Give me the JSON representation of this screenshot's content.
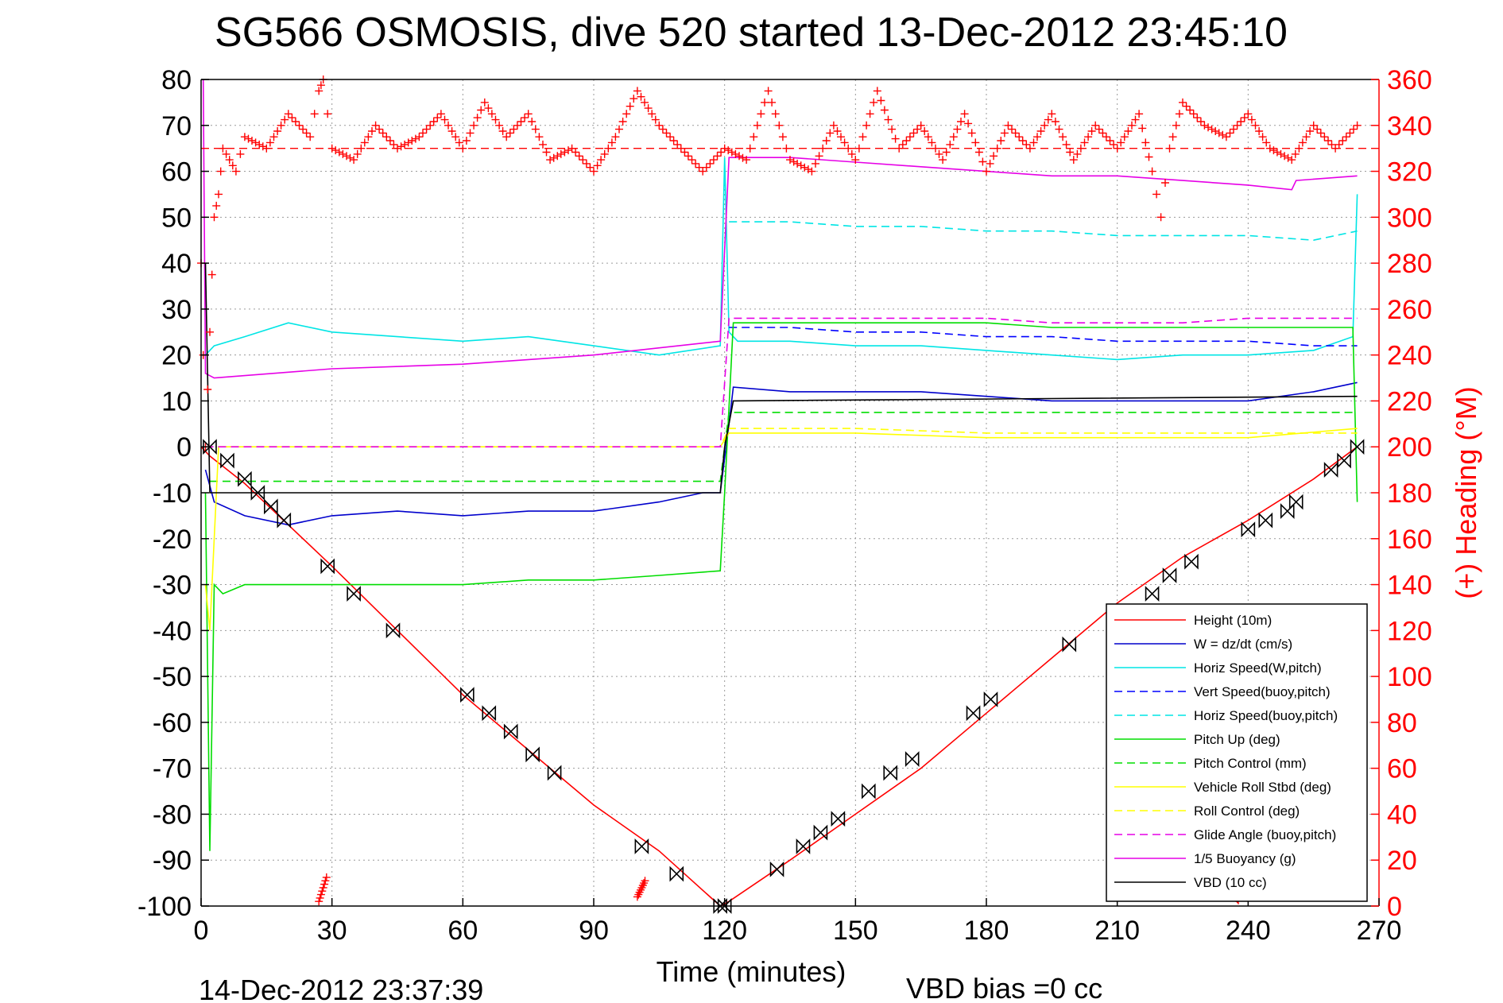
{
  "chart_data": {
    "type": "line",
    "title": "SG566 OSMOSIS, dive 520 started 13-Dec-2012 23:45:10",
    "xlabel": "Time (minutes)",
    "ylabel_right": "(+) Heading (°M)",
    "xlim": [
      0,
      270
    ],
    "ylim_left": [
      -100,
      80
    ],
    "ylim_right": [
      0,
      360
    ],
    "x_ticks": [
      0,
      30,
      60,
      90,
      120,
      150,
      180,
      210,
      240,
      270
    ],
    "y_left_ticks": [
      80,
      70,
      60,
      50,
      40,
      30,
      20,
      10,
      0,
      -10,
      -20,
      -30,
      -40,
      -50,
      -60,
      -70,
      -80,
      -90,
      -100
    ],
    "y_right_ticks": [
      360,
      340,
      320,
      300,
      280,
      260,
      240,
      220,
      200,
      180,
      160,
      140,
      120,
      100,
      80,
      60,
      40,
      20,
      0
    ],
    "grid": true,
    "legend_position": "bottom-right",
    "footer_left": "14-Dec-2012 23:37:39",
    "footer_right": "VBD bias =0 cc",
    "colors": {
      "red": "#ff0000",
      "blue": "#0000cc",
      "cyan": "#00e5e5",
      "green": "#00dd00",
      "yellow": "#ffff00",
      "magenta": "#e600e6",
      "black": "#000000"
    },
    "series": [
      {
        "name": "Height (10m)",
        "color": "#ff0000",
        "style": "solid",
        "axis": "left",
        "x": [
          0,
          2,
          10,
          20,
          30,
          45,
          60,
          75,
          90,
          105,
          119,
          121,
          135,
          150,
          165,
          180,
          195,
          210,
          225,
          240,
          255,
          265
        ],
        "y": [
          0,
          -2,
          -8,
          -17,
          -26,
          -40,
          -54,
          -66,
          -78,
          -88,
          -100,
          -99,
          -90,
          -80,
          -70,
          -58,
          -46,
          -34,
          -24,
          -16,
          -7,
          0
        ]
      },
      {
        "name": "W = dz/dt (cm/s)",
        "color": "#0000cc",
        "style": "solid",
        "axis": "left",
        "x": [
          1,
          3,
          10,
          20,
          30,
          45,
          60,
          75,
          90,
          105,
          115,
          119,
          121,
          122,
          135,
          150,
          165,
          180,
          195,
          210,
          225,
          240,
          255,
          265
        ],
        "y": [
          -5,
          -12,
          -15,
          -17,
          -15,
          -14,
          -15,
          -14,
          -14,
          -12,
          -10,
          -10,
          5,
          13,
          12,
          12,
          12,
          11,
          10,
          10,
          10,
          10,
          12,
          14
        ]
      },
      {
        "name": "Horiz Speed(W,pitch)",
        "color": "#00e5e5",
        "style": "solid",
        "axis": "left",
        "x": [
          1,
          3,
          10,
          20,
          30,
          45,
          60,
          75,
          90,
          105,
          119,
          120,
          121,
          123,
          135,
          150,
          165,
          180,
          195,
          210,
          225,
          240,
          255,
          264,
          265
        ],
        "y": [
          20,
          22,
          24,
          27,
          25,
          24,
          23,
          24,
          22,
          20,
          22,
          63,
          25,
          23,
          23,
          22,
          22,
          21,
          20,
          19,
          20,
          20,
          21,
          24,
          55
        ]
      },
      {
        "name": "Vert Speed(buoy,pitch)",
        "color": "#0000ff",
        "style": "dashed",
        "axis": "left",
        "x": [
          121,
          135,
          150,
          165,
          180,
          195,
          210,
          225,
          240,
          255,
          265
        ],
        "y": [
          26,
          26,
          25,
          25,
          24,
          24,
          23,
          23,
          23,
          22,
          22
        ]
      },
      {
        "name": "Horiz Speed(buoy,pitch)",
        "color": "#00e5e5",
        "style": "dashed",
        "axis": "left",
        "x": [
          121,
          135,
          150,
          165,
          180,
          195,
          210,
          225,
          240,
          255,
          265
        ],
        "y": [
          49,
          49,
          48,
          48,
          47,
          47,
          46,
          46,
          46,
          45,
          47
        ]
      },
      {
        "name": "Pitch Up (deg)",
        "color": "#00dd00",
        "style": "solid",
        "axis": "left",
        "x": [
          1,
          2,
          3,
          5,
          10,
          20,
          30,
          45,
          60,
          75,
          90,
          105,
          119,
          120,
          122,
          135,
          150,
          165,
          180,
          195,
          210,
          225,
          240,
          255,
          264,
          265
        ],
        "y": [
          -10,
          -88,
          -30,
          -32,
          -30,
          -30,
          -30,
          -30,
          -30,
          -29,
          -29,
          -28,
          -27,
          -10,
          27,
          27,
          27,
          27,
          27,
          26,
          26,
          26,
          26,
          26,
          26,
          -12
        ]
      },
      {
        "name": "Pitch Control (mm)",
        "color": "#00dd00",
        "style": "dashed",
        "axis": "left",
        "x": [
          2,
          119,
          121,
          265
        ],
        "y": [
          -7.5,
          -7.5,
          7.5,
          7.5
        ]
      },
      {
        "name": "Vehicle Roll Stbd (deg)",
        "color": "#ffff00",
        "style": "solid",
        "axis": "left",
        "x": [
          1,
          2,
          4,
          6,
          10,
          30,
          60,
          90,
          119,
          121,
          150,
          180,
          210,
          240,
          265
        ],
        "y": [
          -30,
          -40,
          0,
          0,
          0,
          0,
          0,
          0,
          0,
          3,
          3,
          2,
          2,
          2,
          4
        ]
      },
      {
        "name": "Roll Control (deg)",
        "color": "#ffff00",
        "style": "dashed",
        "axis": "left",
        "x": [
          1,
          5,
          10,
          30,
          60,
          90,
          119,
          121,
          150,
          180,
          210,
          240,
          265
        ],
        "y": [
          0,
          0,
          0,
          0,
          0,
          0,
          0,
          4,
          4,
          3,
          3,
          3,
          3
        ]
      },
      {
        "name": "Glide Angle (buoy,pitch)",
        "color": "#e600e6",
        "style": "dashed",
        "axis": "left",
        "x": [
          1,
          119,
          121,
          135,
          150,
          165,
          180,
          195,
          210,
          225,
          240,
          255,
          265
        ],
        "y": [
          0,
          0,
          28,
          28,
          28,
          28,
          28,
          27,
          27,
          27,
          28,
          28,
          28
        ]
      },
      {
        "name": "1/5 Buoyancy (g)",
        "color": "#e600e6",
        "style": "solid",
        "axis": "left",
        "x": [
          0.5,
          1,
          3,
          30,
          60,
          90,
          119,
          121,
          135,
          150,
          165,
          180,
          195,
          210,
          225,
          240,
          250,
          251,
          265
        ],
        "y": [
          80,
          16,
          15,
          17,
          18,
          20,
          23,
          63,
          63,
          62,
          61,
          60,
          59,
          59,
          58,
          57,
          56,
          58,
          59
        ]
      },
      {
        "name": "VBD (10 cc)",
        "color": "#000000",
        "style": "solid",
        "axis": "left",
        "x": [
          1,
          2,
          119,
          120,
          122,
          265
        ],
        "y": [
          40,
          -10,
          -10,
          0,
          10,
          11
        ]
      }
    ],
    "heading": {
      "axis": "right",
      "color": "#ff0000",
      "marker": "+",
      "reference": 330,
      "x": [
        0,
        1,
        2,
        3,
        4,
        5,
        8,
        10,
        15,
        20,
        25,
        27,
        28,
        30,
        35,
        40,
        45,
        50,
        55,
        60,
        65,
        70,
        75,
        80,
        85,
        90,
        95,
        100,
        105,
        110,
        115,
        120,
        125,
        130,
        135,
        140,
        145,
        150,
        155,
        160,
        165,
        170,
        175,
        180,
        185,
        190,
        195,
        200,
        205,
        210,
        215,
        218,
        220,
        222,
        225,
        230,
        235,
        240,
        245,
        250,
        255,
        260,
        265
      ],
      "y": [
        280,
        200,
        250,
        300,
        310,
        330,
        320,
        335,
        330,
        345,
        335,
        355,
        360,
        330,
        325,
        340,
        330,
        335,
        345,
        330,
        350,
        335,
        345,
        325,
        330,
        320,
        335,
        355,
        340,
        330,
        320,
        330,
        325,
        355,
        325,
        320,
        340,
        325,
        355,
        330,
        340,
        325,
        345,
        320,
        340,
        330,
        345,
        325,
        340,
        330,
        345,
        320,
        300,
        330,
        350,
        340,
        335,
        345,
        330,
        325,
        340,
        330,
        340
      ]
    },
    "heading_wraps": [
      {
        "x": [
          27,
          28,
          29
        ],
        "y": [
          2,
          8,
          14
        ]
      },
      {
        "x": [
          100,
          101,
          102
        ],
        "y": [
          4,
          8,
          12
        ]
      },
      {
        "x": [
          237,
          238
        ],
        "y": [
          4,
          2
        ]
      }
    ],
    "markers": {
      "symbol": "bowtie",
      "x": [
        2,
        6,
        10,
        13,
        16,
        19,
        29,
        35,
        44,
        61,
        66,
        71,
        76,
        81,
        101,
        109,
        119,
        120,
        132,
        138,
        142,
        146,
        153,
        158,
        163,
        177,
        181,
        199,
        218,
        222,
        227,
        240,
        244,
        249,
        251,
        259,
        262,
        265
      ],
      "y": [
        0,
        -3,
        -7,
        -10,
        -13,
        -16,
        -26,
        -32,
        -40,
        -54,
        -58,
        -62,
        -67,
        -71,
        -87,
        -93,
        -100,
        -100,
        -92,
        -87,
        -84,
        -81,
        -75,
        -71,
        -68,
        -58,
        -55,
        -43,
        -32,
        -28,
        -25,
        -18,
        -16,
        -14,
        -12,
        -5,
        -3,
        0
      ]
    }
  }
}
